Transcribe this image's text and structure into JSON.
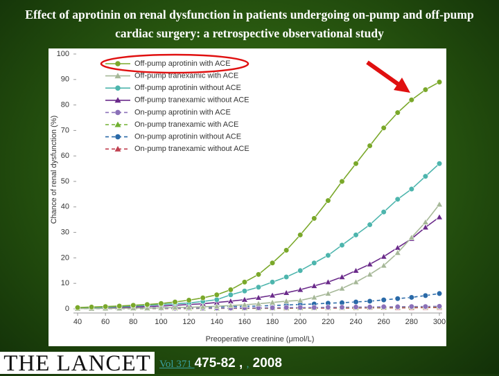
{
  "chart_data": {
    "type": "line",
    "title": "Effect of aprotinin on renal dysfunction in patients undergoing on-pump and off-pump cardiac surgery: a retrospective observational study",
    "x_label": "Preoperative creatinine (μmol/L)",
    "y_label": "Chance of renal dysfunction (%)",
    "x": [
      40,
      50,
      60,
      70,
      80,
      90,
      100,
      110,
      120,
      130,
      140,
      150,
      160,
      170,
      180,
      190,
      200,
      210,
      220,
      230,
      240,
      250,
      260,
      270,
      280,
      290,
      300
    ],
    "xlim": [
      40,
      300
    ],
    "xticks": [
      40,
      60,
      80,
      100,
      120,
      140,
      160,
      180,
      200,
      220,
      240,
      260,
      280,
      300
    ],
    "ylim": [
      0,
      100
    ],
    "yticks": [
      0,
      10,
      20,
      30,
      40,
      50,
      60,
      70,
      80,
      90,
      100
    ],
    "legend": "upper left",
    "series": [
      {
        "name": "Off-pump aprotinin with ACE",
        "color": "#7aa82a",
        "marker": "circle",
        "dashed": false,
        "values": [
          0.5,
          0.7,
          0.9,
          1.1,
          1.4,
          1.7,
          2.1,
          2.7,
          3.4,
          4.3,
          5.5,
          7.5,
          10.5,
          13.5,
          18,
          23,
          29,
          35.5,
          42.5,
          50,
          57,
          64,
          71,
          77,
          82,
          86,
          89
        ]
      },
      {
        "name": "Off-pump tranexamic with ACE",
        "color": "#a6b898",
        "marker": "triangle",
        "dashed": false,
        "values": [
          0.1,
          0.1,
          0.2,
          0.2,
          0.3,
          0.3,
          0.4,
          0.5,
          0.6,
          0.8,
          1,
          1.3,
          1.6,
          2,
          2.5,
          3,
          3.3,
          4.5,
          6,
          8,
          10.5,
          13.5,
          17,
          22,
          28,
          34,
          41
        ]
      },
      {
        "name": "Off-pump aprotinin without ACE",
        "color": "#4db5ad",
        "marker": "circle",
        "dashed": false,
        "values": [
          0.4,
          0.5,
          0.7,
          0.9,
          1.1,
          1.4,
          1.7,
          2,
          2.3,
          2.9,
          3.6,
          5.5,
          7,
          8.5,
          10.5,
          12.5,
          15,
          18,
          21,
          25,
          29,
          33,
          38,
          43,
          47,
          52,
          57
        ]
      },
      {
        "name": "Off-pump tranexamic without ACE",
        "color": "#6a2a8a",
        "marker": "triangle",
        "dashed": false,
        "values": [
          0.3,
          0.4,
          0.5,
          0.6,
          0.7,
          0.9,
          1.1,
          1.4,
          1.7,
          2,
          2.5,
          3,
          3.6,
          4.4,
          5.3,
          6.3,
          7.5,
          9,
          10.5,
          12.5,
          15,
          17.5,
          20.5,
          24,
          27.5,
          32,
          36
        ]
      },
      {
        "name": "On-pump aprotinin with ACE",
        "color": "#8a70b8",
        "marker": "circle",
        "dashed": true,
        "values": [
          0.1,
          0.1,
          0.1,
          0.1,
          0.2,
          0.2,
          0.2,
          0.2,
          0.3,
          0.3,
          0.3,
          0.3,
          0.4,
          0.4,
          0.4,
          0.5,
          0.5,
          0.5,
          0.6,
          0.6,
          0.7,
          0.7,
          0.8,
          0.8,
          0.9,
          0.9,
          1
        ]
      },
      {
        "name": "On-pump tranexamic with ACE",
        "color": "#70b030",
        "marker": "triangle",
        "dashed": true,
        "values": [
          0.1,
          0.1,
          0.1,
          0.1,
          0.1,
          0.1,
          0.2,
          0.2,
          0.2,
          0.2,
          0.2,
          0.3,
          0.3,
          0.3,
          0.3,
          0.4,
          0.4,
          0.4,
          0.5,
          0.5,
          0.5,
          0.6,
          0.6,
          0.7,
          0.7,
          0.8,
          0.8
        ]
      },
      {
        "name": "On-pump aprotinin without ACE",
        "color": "#2a6aa8",
        "marker": "circle",
        "dashed": true,
        "values": [
          0.2,
          0.2,
          0.3,
          0.3,
          0.4,
          0.4,
          0.5,
          0.5,
          0.6,
          0.7,
          0.8,
          0.9,
          1,
          1.1,
          1.3,
          1.5,
          1.7,
          1.9,
          2.2,
          2.4,
          2.7,
          3,
          3.5,
          4,
          4.5,
          5.2,
          6
        ]
      },
      {
        "name": "On-pump tranexamic without ACE",
        "color": "#c04050",
        "marker": "triangle",
        "dashed": true,
        "values": [
          0.1,
          0.1,
          0.1,
          0.1,
          0.1,
          0.1,
          0.1,
          0.1,
          0.1,
          0.2,
          0.2,
          0.2,
          0.2,
          0.2,
          0.2,
          0.2,
          0.3,
          0.3,
          0.3,
          0.3,
          0.3,
          0.4,
          0.4,
          0.4,
          0.4,
          0.5,
          0.5
        ]
      }
    ]
  },
  "footer": {
    "logo": "THE LANCET",
    "volume": "Vol 371 ",
    "pages": "475-82",
    "sep": " , ",
    "sep_link": ",",
    "year": " 2008"
  }
}
